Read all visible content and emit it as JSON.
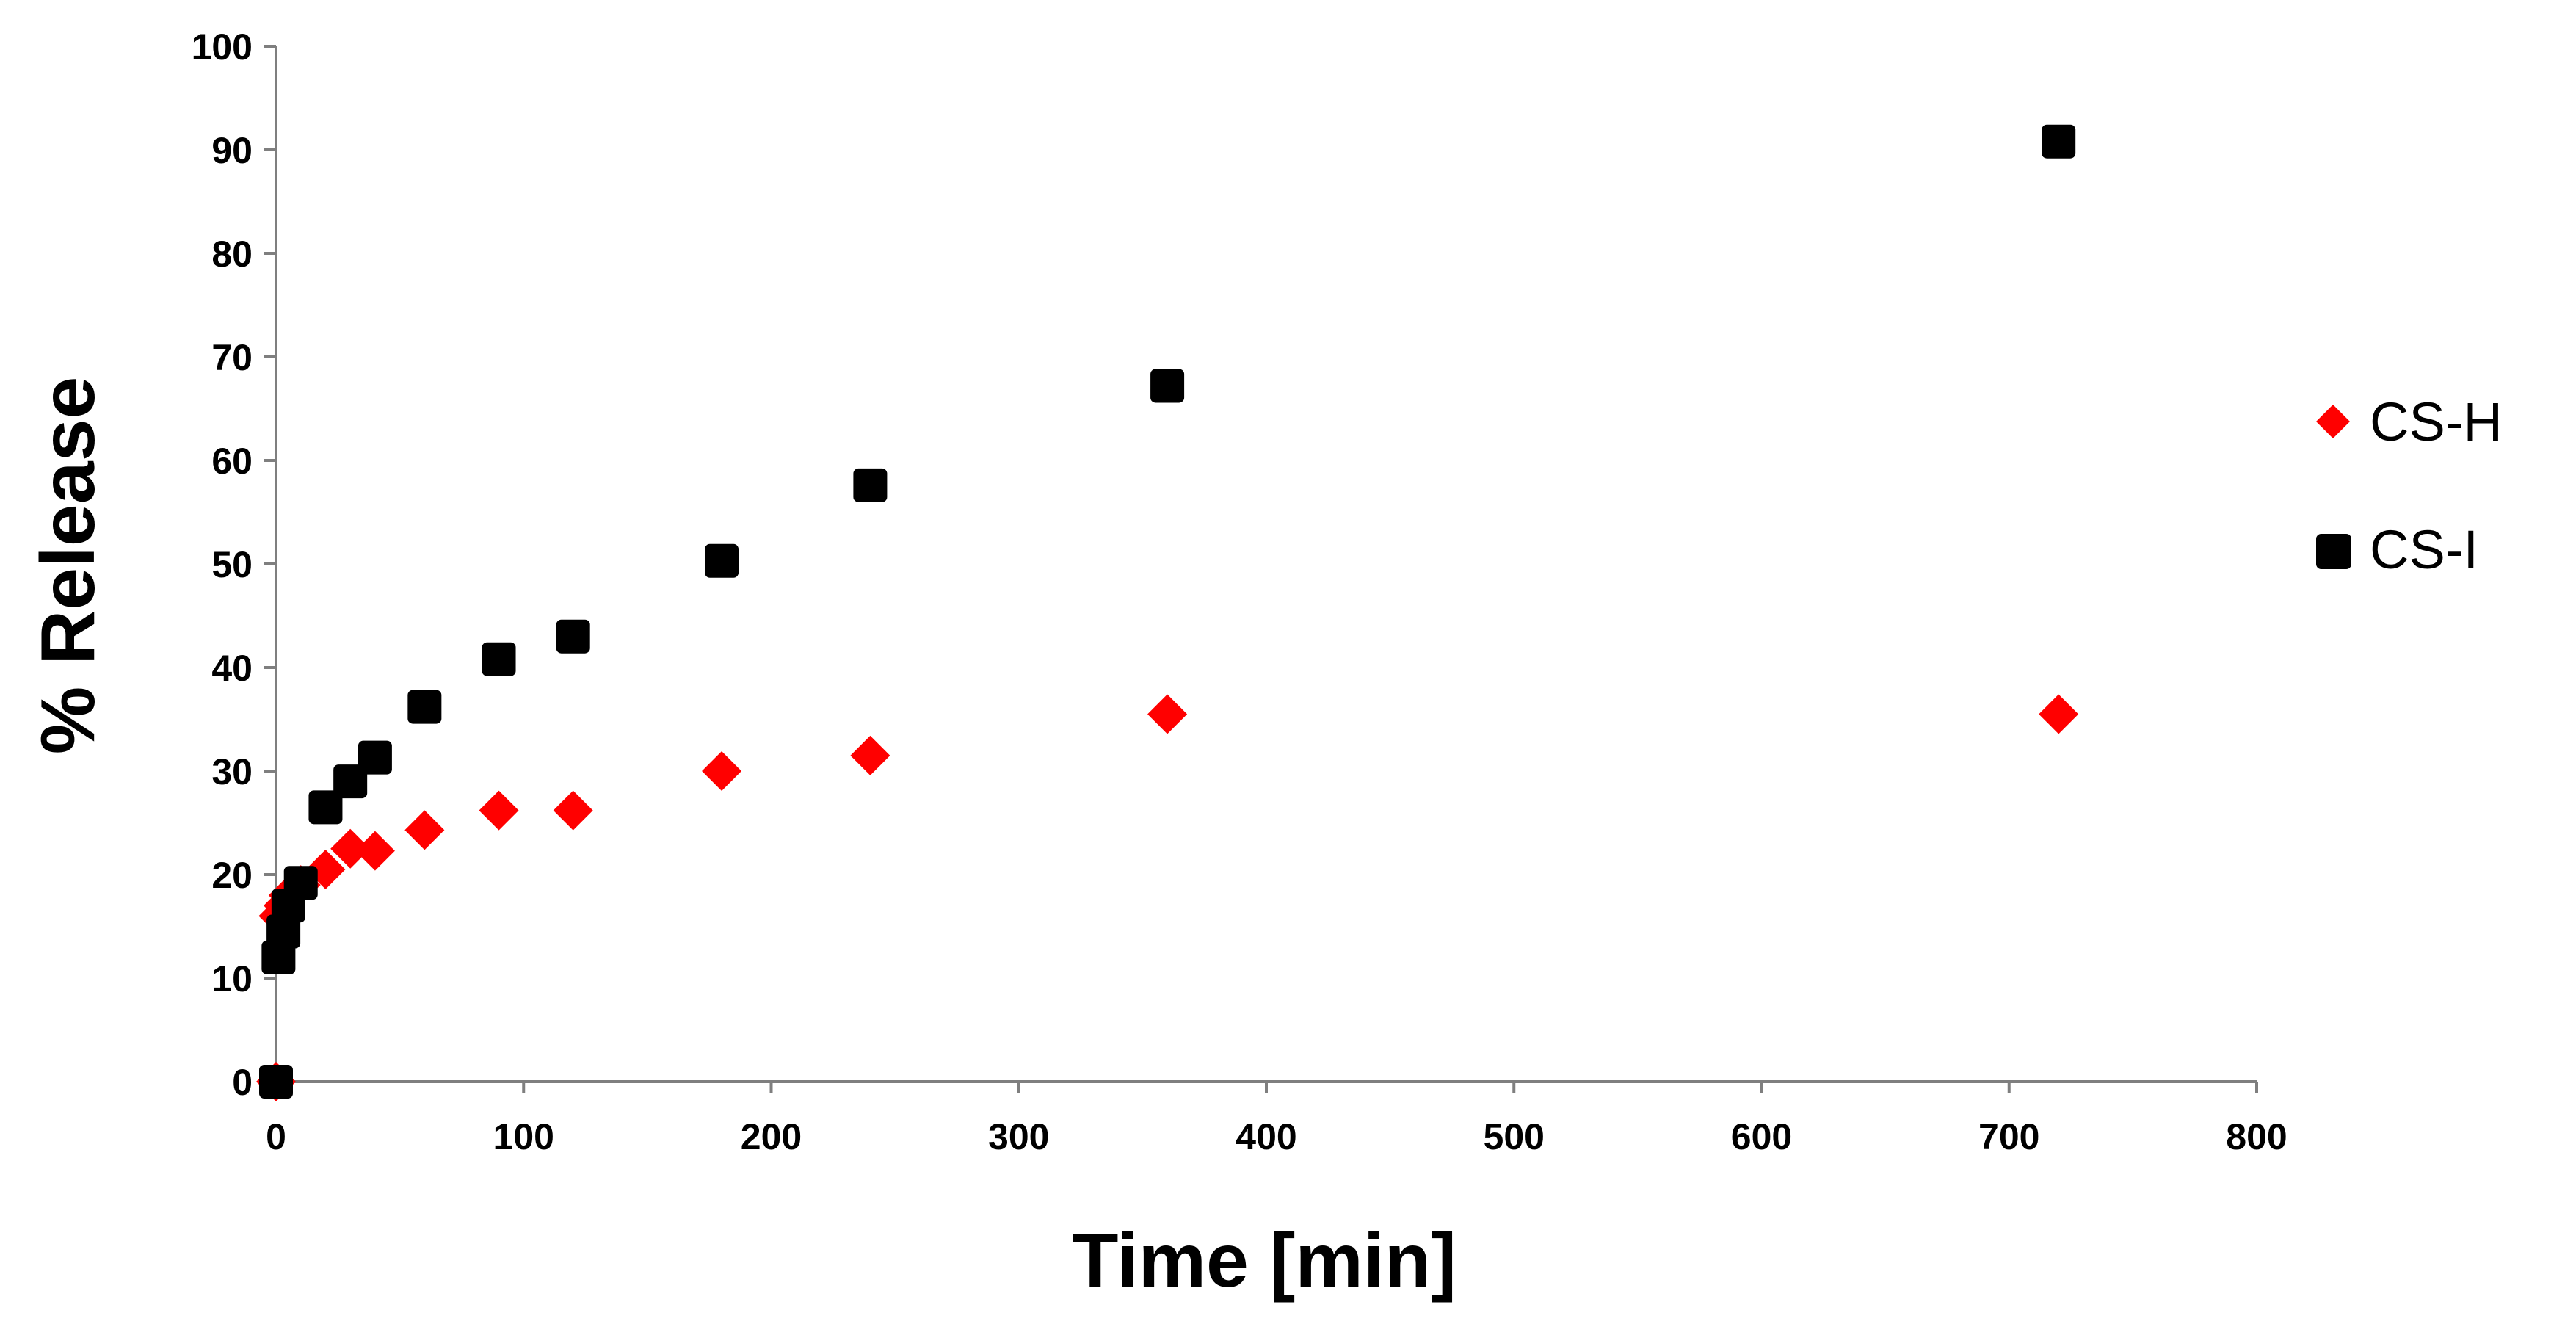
{
  "chart_data": {
    "type": "scatter",
    "title": "",
    "xlabel": "Time [min]",
    "ylabel": "% Release",
    "xlim": [
      0,
      800
    ],
    "ylim": [
      0,
      100
    ],
    "xticks": [
      0,
      100,
      200,
      300,
      400,
      500,
      600,
      700,
      800
    ],
    "yticks": [
      0,
      10,
      20,
      30,
      40,
      50,
      60,
      70,
      80,
      90,
      100
    ],
    "grid": false,
    "legend_position": "right",
    "series": [
      {
        "name": "CS-H",
        "marker": "diamond",
        "color": "#ff0000",
        "x": [
          0,
          1,
          3,
          5,
          10,
          20,
          30,
          40,
          60,
          90,
          120,
          180,
          240,
          360,
          720
        ],
        "y": [
          0,
          16,
          17,
          18,
          19,
          20.5,
          22.5,
          22.3,
          24.3,
          26.2,
          26.2,
          30,
          31.5,
          35.5,
          35.5
        ]
      },
      {
        "name": "CS-I",
        "marker": "square",
        "color": "#000000",
        "x": [
          0,
          1,
          3,
          5,
          10,
          20,
          30,
          40,
          60,
          90,
          120,
          180,
          240,
          360,
          720
        ],
        "y": [
          0,
          12,
          14.5,
          17,
          19.2,
          26.5,
          29,
          31.3,
          36.2,
          40.8,
          43,
          50.3,
          57.6,
          67.2,
          90.8
        ]
      }
    ]
  }
}
